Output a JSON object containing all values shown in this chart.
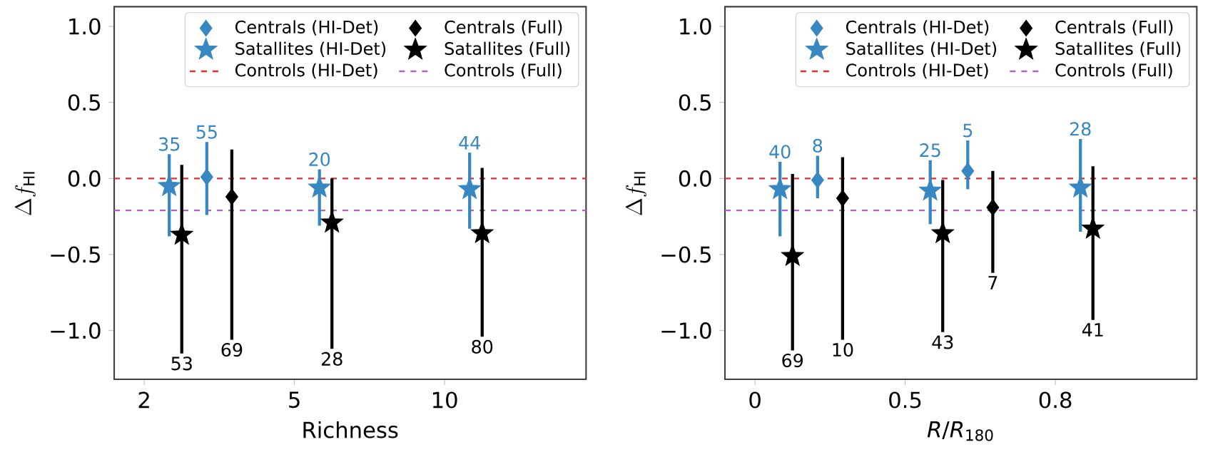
{
  "chart_data": [
    {
      "type": "scatter",
      "xlabel": "Richness",
      "ylabel": "\\Delta f_{\\mathrm{HI}}",
      "categories": [
        "2",
        null,
        null,
        null,
        null,
        null,
        null,
        null,
        null,
        null,
        null,
        null,
        "5",
        null,
        null,
        null,
        null,
        null,
        null,
        null,
        null,
        null,
        null,
        null,
        "10",
        null,
        null,
        null
      ],
      "ylim": [
        -1.32,
        1.13
      ],
      "yticks": [
        {
          "value": -1,
          "label": "−1.0"
        },
        {
          "value": -0.5,
          "label": "−0.5"
        },
        {
          "value": 0,
          "label": "0.0"
        },
        {
          "value": 0.5,
          "label": "0.5"
        },
        {
          "value": 1,
          "label": "1.0"
        }
      ],
      "legend": "top right",
      "grid": false,
      "series": [
        {
          "name": "Centrals (HI-Det)",
          "color": "#3787c0",
          "marker": "diamond",
          "values": [
            null,
            null,
            null,
            null,
            null,
            0.01,
            null,
            null,
            null,
            null,
            null,
            null,
            null,
            null,
            null,
            null,
            null,
            null,
            null,
            null,
            null,
            null,
            null,
            null,
            null,
            null,
            null,
            null
          ],
          "errors": [
            null,
            null,
            null,
            null,
            null,
            [
              -0.24,
              0.24
            ],
            null,
            null,
            null,
            null,
            null,
            null,
            null,
            null,
            null,
            null,
            null,
            null,
            null,
            null,
            null,
            null,
            null,
            null,
            null,
            null,
            null,
            null
          ]
        },
        {
          "name": "Satallites (HI-Det)",
          "color": "#3787c0",
          "marker": "star",
          "values": [
            null,
            null,
            -0.05,
            null,
            null,
            null,
            null,
            null,
            null,
            null,
            null,
            null,
            null,
            null,
            -0.06,
            null,
            null,
            null,
            null,
            null,
            null,
            null,
            null,
            null,
            null,
            null,
            -0.07,
            null
          ],
          "errors": [
            null,
            null,
            [
              -0.38,
              0.16
            ],
            null,
            null,
            null,
            null,
            null,
            null,
            null,
            null,
            null,
            null,
            null,
            [
              -0.31,
              0.06
            ],
            null,
            null,
            null,
            null,
            null,
            null,
            null,
            null,
            null,
            null,
            null,
            [
              -0.33,
              0.17
            ],
            null
          ]
        },
        {
          "name": "Centrals (Full)",
          "color": "#000000",
          "marker": "diamond",
          "values": [
            null,
            null,
            null,
            null,
            null,
            null,
            null,
            -0.12,
            null,
            null,
            null,
            null,
            null,
            null,
            null,
            null,
            null,
            null,
            null,
            null,
            null,
            null,
            null,
            null,
            null,
            null,
            null,
            null
          ],
          "errors": [
            null,
            null,
            null,
            null,
            null,
            null,
            null,
            [
              -1.06,
              0.19
            ],
            null,
            null,
            null,
            null,
            null,
            null,
            null,
            null,
            null,
            null,
            null,
            null,
            null,
            null,
            null,
            null,
            null,
            null,
            null,
            null
          ]
        },
        {
          "name": "Satallites (Full)",
          "color": "#000000",
          "marker": "star",
          "values": [
            null,
            null,
            null,
            -0.37,
            null,
            null,
            null,
            null,
            null,
            null,
            null,
            null,
            null,
            null,
            null,
            -0.29,
            null,
            null,
            null,
            null,
            null,
            null,
            null,
            null,
            null,
            null,
            null,
            -0.36
          ],
          "errors": [
            null,
            null,
            null,
            [
              -1.15,
              0.09
            ],
            null,
            null,
            null,
            null,
            null,
            null,
            null,
            null,
            null,
            null,
            null,
            [
              -1.12,
              0.0
            ],
            null,
            null,
            null,
            null,
            null,
            null,
            null,
            null,
            null,
            null,
            null,
            [
              -1.04,
              0.07
            ]
          ]
        }
      ],
      "ref_lines": [
        {
          "axis": "y",
          "value": 0.0,
          "label": "Controls (HI-Det)",
          "color": "#e8302a",
          "line_style": "dashed"
        },
        {
          "axis": "y",
          "value": -0.21,
          "label": "Controls (Full)",
          "color": "#b55fc8",
          "line_style": "dashed"
        }
      ],
      "annotations": [
        {
          "text": "55",
          "y": 0.24
        },
        {
          "text": "35",
          "y": 0.16
        },
        {
          "text": "20",
          "y": 0.06
        },
        {
          "text": "44",
          "y": 0.17
        },
        {
          "text": "69",
          "y": -1.06
        },
        {
          "text": "53",
          "y": -1.15
        },
        {
          "text": "28",
          "y": -1.12
        },
        {
          "text": "80",
          "y": -1.04
        }
      ]
    },
    {
      "type": "scatter",
      "xlabel": "*R*/*R*$_{180}$",
      "ylabel": "\\Delta f_{\\mathrm{HI}}",
      "categories": [
        "0",
        null,
        null,
        null,
        null,
        null,
        null,
        null,
        null,
        null,
        null,
        null,
        "0.5",
        null,
        null,
        null,
        null,
        null,
        null,
        null,
        null,
        null,
        null,
        null,
        "0.8",
        null,
        null,
        null
      ],
      "ylim": [
        -1.32,
        1.13
      ],
      "yticks": [
        {
          "value": -1,
          "label": "−1.0"
        },
        {
          "value": -0.5,
          "label": "−0.5"
        },
        {
          "value": 0,
          "label": "0.0"
        },
        {
          "value": 0.5,
          "label": "0.5"
        },
        {
          "value": 1,
          "label": "1.0"
        }
      ],
      "legend": "top right",
      "grid": false,
      "series": [
        {
          "name": "Centrals (HI-Det)",
          "color": "#3787c0",
          "marker": "diamond",
          "values": [
            null,
            null,
            null,
            null,
            null,
            -0.01,
            null,
            null,
            null,
            null,
            null,
            null,
            null,
            null,
            null,
            null,
            null,
            0.05,
            null,
            null,
            null,
            null,
            null,
            null,
            null,
            null,
            null,
            null
          ],
          "errors": [
            null,
            null,
            null,
            null,
            null,
            [
              -0.13,
              0.15
            ],
            null,
            null,
            null,
            null,
            null,
            null,
            null,
            null,
            null,
            null,
            null,
            [
              -0.07,
              0.25
            ],
            null,
            null,
            null,
            null,
            null,
            null,
            null,
            null,
            null,
            null
          ]
        },
        {
          "name": "Satallites (HI-Det)",
          "color": "#3787c0",
          "marker": "star",
          "values": [
            null,
            null,
            -0.07,
            null,
            null,
            null,
            null,
            null,
            null,
            null,
            null,
            null,
            null,
            null,
            -0.08,
            null,
            null,
            null,
            null,
            null,
            null,
            null,
            null,
            null,
            null,
            null,
            -0.06,
            null
          ],
          "errors": [
            null,
            null,
            [
              -0.38,
              0.11
            ],
            null,
            null,
            null,
            null,
            null,
            null,
            null,
            null,
            null,
            null,
            null,
            [
              -0.3,
              0.12
            ],
            null,
            null,
            null,
            null,
            null,
            null,
            null,
            null,
            null,
            null,
            null,
            [
              -0.35,
              0.26
            ],
            null
          ]
        },
        {
          "name": "Centrals (Full)",
          "color": "#000000",
          "marker": "diamond",
          "values": [
            null,
            null,
            null,
            null,
            null,
            null,
            null,
            -0.13,
            null,
            null,
            null,
            null,
            null,
            null,
            null,
            null,
            null,
            null,
            null,
            -0.19,
            null,
            null,
            null,
            null,
            null,
            null,
            null,
            null
          ],
          "errors": [
            null,
            null,
            null,
            null,
            null,
            null,
            null,
            [
              -1.06,
              0.14
            ],
            null,
            null,
            null,
            null,
            null,
            null,
            null,
            null,
            null,
            null,
            null,
            [
              -0.62,
              0.05
            ],
            null,
            null,
            null,
            null,
            null,
            null,
            null,
            null
          ]
        },
        {
          "name": "Satallites (Full)",
          "color": "#000000",
          "marker": "star",
          "values": [
            null,
            null,
            null,
            -0.51,
            null,
            null,
            null,
            null,
            null,
            null,
            null,
            null,
            null,
            null,
            null,
            -0.36,
            null,
            null,
            null,
            null,
            null,
            null,
            null,
            null,
            null,
            null,
            null,
            -0.33
          ],
          "errors": [
            null,
            null,
            null,
            [
              -1.13,
              0.03
            ],
            null,
            null,
            null,
            null,
            null,
            null,
            null,
            null,
            null,
            null,
            null,
            [
              -1.01,
              -0.01
            ],
            null,
            null,
            null,
            null,
            null,
            null,
            null,
            null,
            null,
            null,
            null,
            [
              -0.93,
              0.08
            ]
          ]
        }
      ],
      "ref_lines": [
        {
          "axis": "y",
          "value": 0.0,
          "label": "Controls (HI-Det)",
          "color": "#e8302a",
          "line_style": "dashed"
        },
        {
          "axis": "y",
          "value": -0.21,
          "label": "Controls (Full)",
          "color": "#b55fc8",
          "line_style": "dashed"
        }
      ],
      "annotations": [
        {
          "text": "8",
          "y": 0.15
        },
        {
          "text": "5",
          "y": 0.25
        },
        {
          "text": "40",
          "y": 0.11
        },
        {
          "text": "25",
          "y": 0.12
        },
        {
          "text": "28",
          "y": 0.26
        },
        {
          "text": "10",
          "y": -1.06
        },
        {
          "text": "7",
          "y": -0.62
        },
        {
          "text": "69",
          "y": -1.13
        },
        {
          "text": "43",
          "y": -1.01
        },
        {
          "text": "41",
          "y": -0.93
        }
      ]
    }
  ]
}
